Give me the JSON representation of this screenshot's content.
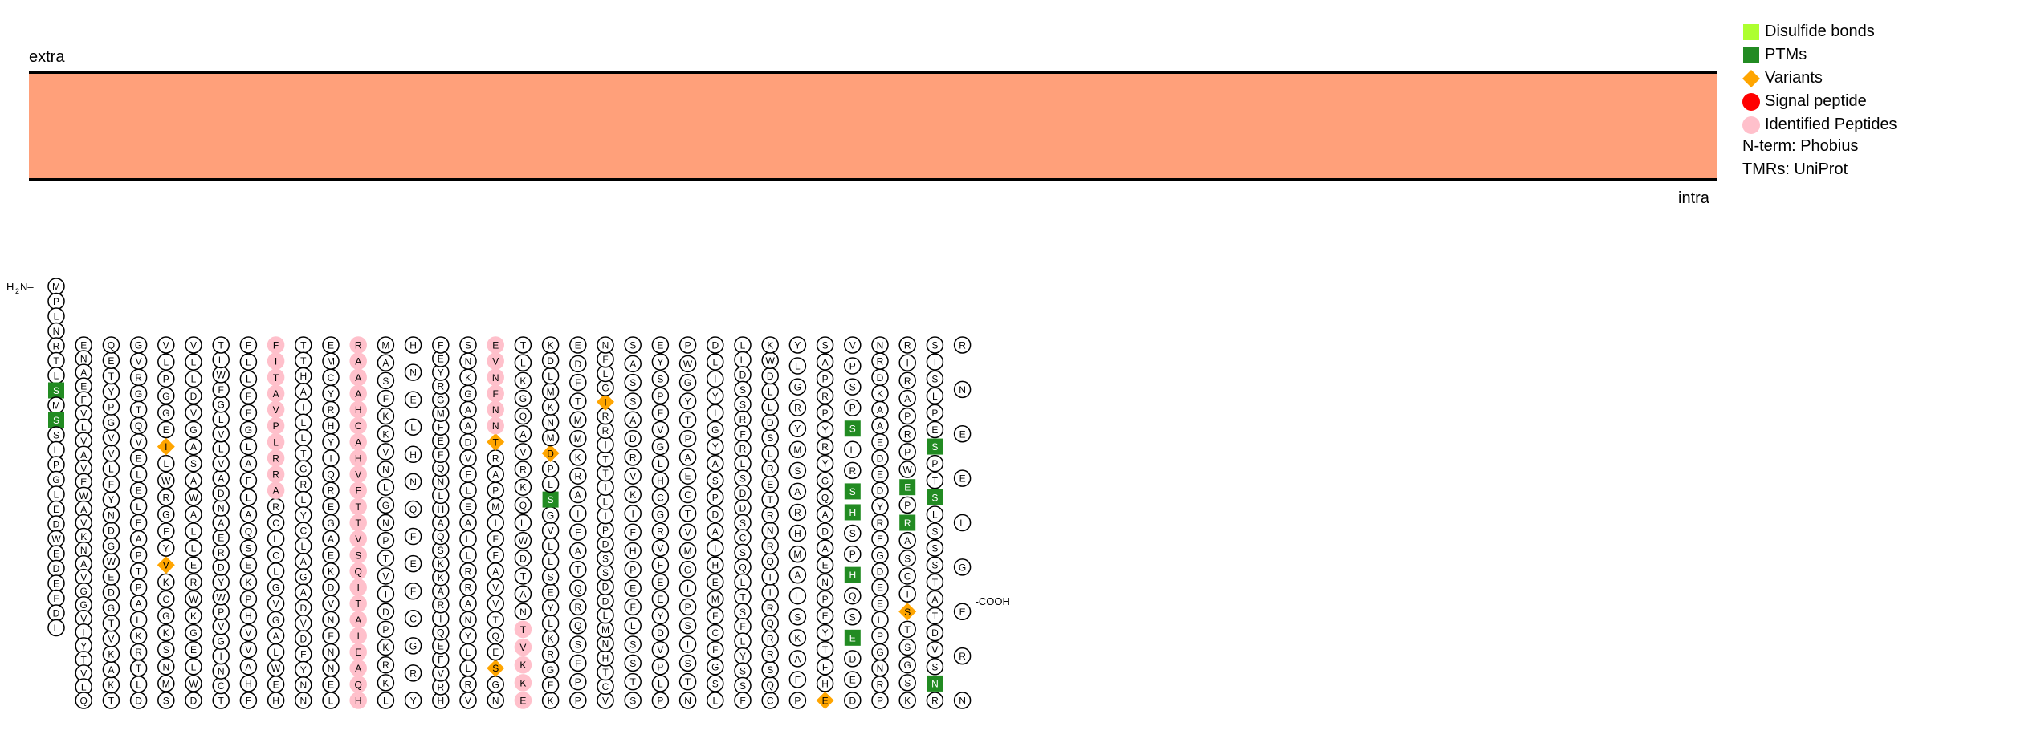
{
  "membrane": {
    "color": "#ffa07a",
    "extra_label": "extra",
    "intra_label": "intra"
  },
  "legend": {
    "items": [
      {
        "label": "Disulfide bonds",
        "shape": "square",
        "color": "#adff2f"
      },
      {
        "label": "PTMs",
        "shape": "square",
        "color": "#228b22"
      },
      {
        "label": "Variants",
        "shape": "diamond",
        "color": "#ffa500"
      },
      {
        "label": "Signal peptide",
        "shape": "circle",
        "color": "#ff0000"
      },
      {
        "label": "Identified Peptides",
        "shape": "circle",
        "color": "#ffc0cb"
      }
    ],
    "notes": [
      "N-term: Phobius",
      "TMRs: UniProt"
    ]
  },
  "termini": {
    "n": "H₂N–",
    "c": "–COOH"
  },
  "sequence": {
    "columns": [
      "MPLNRTLSMSSLPGLEDWEDEFDL",
      "ENAEFVLVAVEWAVKNAVGGVIYTVLQ",
      "TKAKVTGDEWGDNYFLVVGPYTEQ",
      "GVRGTQVELELEAPTPALKRTLD",
      "SMNSKGCKVYFGRWLIEGGPLV",
      "VLLDVGASAWALLERWKGELWD",
      "TCNIGVPWYDREANDAVLVLGFWLT",
      "FLLFFGLAFLAQSEKPHVVAHF",
      "HEWLAGVGLCLCRARRLPVATIF",
      "TTHATLLTGRLYCLAGADVDFYNN",
      "LENNFNVDKEAGERQIYHRYCME",
      "RAAAHCAHVFTTVSQITAIEAQH",
      "LKRKPDIVTPNGLNVKKFSAM",
      "HNELHNQFEFCGRY",
      "HRVFEQIRAKKSQAHLNQFEFMGRYEF",
      "SNKGAADVFLEALLRRANYLLRV",
      "NGSEQTVVAFFIMPARTNNFNVE",
      "TLKGQAVRKQLWDTANTVKKE",
      "KFGRKLYESLLVGSLPDMNKMLDK",
      "EDFTMMKRAIFATQRQSFPP",
      "VCTHNMLDDSSDPILITTIRRIGLFN",
      "SASSADRVKIFHPEFLSSTS",
      "PLPVDYEEFVRGCHLGVFPSYE",
      "PWGYTPAECTVMGIPSISTN",
      "LSGFCFMEHIADPSAYGIYILD",
      "LLDSSRFRLSDDSCSQLTSFLYSSF",
      "CQSRRQRIIQRNRTERLSDLLDWK",
      "YLGRYMSARHMALSKAFP",
      "EHFTYEPNEADAQGYRYPRPAS",
      "VPSPSLRSHSPHQSEDED",
      "PRNGPLEEDGERYDEDEAAKDRN",
      "RIRAPRPWEPRASCTSTSGSK",
      "RNSVDTATSSSLSTPSEPLSTS",
      "RNEELGERN"
    ],
    "cterm_label": "-COOH"
  },
  "residues_text": "MPLNRTLSMSSLPGLEDWEDEFDLENAEFVLVAVEWAVKNAVGGVIYTVLQTKAKVTGDEWGDNYFLVVGPYTEQGVRGTQVELELEAPTPALKRTLDSMNSKGCKVYFGRWLIEGGPLVVLLDVGASAWALLERWKGELWDTCNIGVPWYDREANDAVLVLGFWLTFLLFFGLAFLAQSEKPHVVAHFHEWLAGVGLCLCRARRLPVATIFTTHATLLTGRLYCLAGADVDFYNNLENNFNVDKEAGERQIYHRYCMERAAAHCAHVFTTVSQITAIEAQHLKRKPDIVTPNGLNVKKFSAMHNELHNQFEFCGRYHRVFEQIRAKKSQAHLNQFEFMGRYEFSNKGAADVFLEALLRRANYLLRVNGSEQTVVAFFIMPARTNNFNVETLKGQAVRKQLWDTANTVKKEKFGRKLYESLLVGSLPDMNKMLDKEDFTMMKRAIFATQRQSFPPVCTHNMLDDSSDPILITTIRRIGLFNSASSADRVKIFHPEFLSSTSPLPVDYEEFVRGCHLGVFPSYEPWGYTPAECTVMGIPSISTNLSGFCFMEHIADPSAYGIYILDLLDSSRFRLSDDSCSQLTSFLYSSFCQSRRQRIIQRNRTERLSDLLDWKYLGRYMSARHMALSKAFPEHFTYEPNEADAQGYRYPRPASVPSPSLRSHSPHQSEDEDPRNGPLEEDGERYDEDEAAKDRNRIRAPRPWEPRASCTSTSGSKRNSVDTATSSSLSTPSEPLSTSRNEELGERN"
}
